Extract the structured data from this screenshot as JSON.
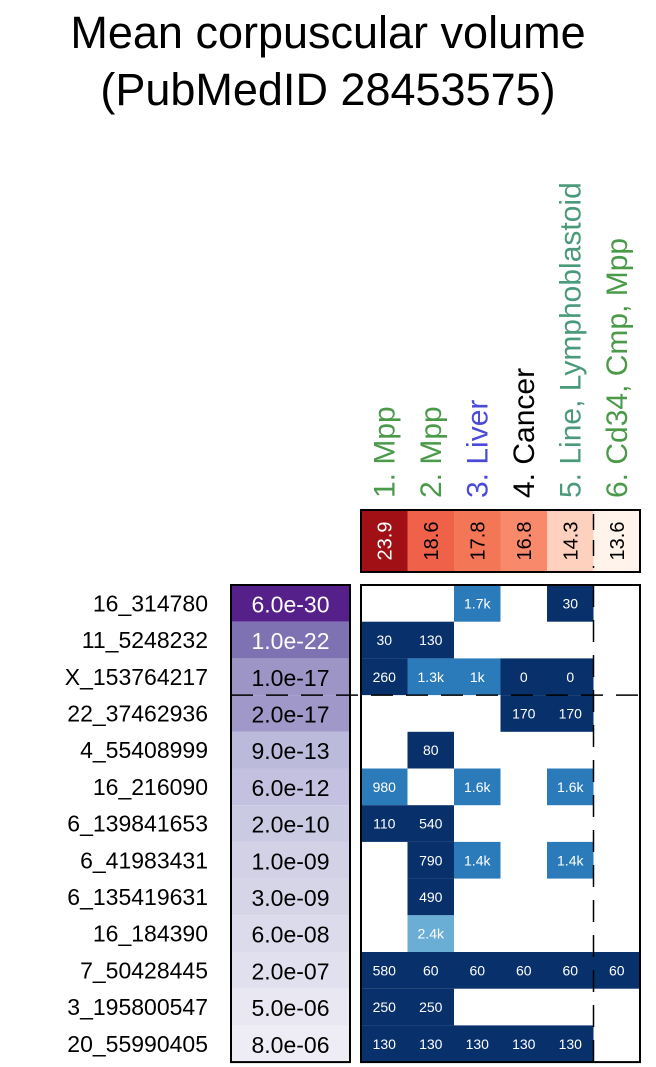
{
  "chart_data": {
    "type": "heatmap",
    "title_lines": [
      "Mean corpuscular volume",
      "(PubMedID 28453575)"
    ],
    "tissues": [
      {
        "label": "1. Mpp",
        "color": "#4a9a4a",
        "score": "23.9",
        "fill": "#a01014",
        "text_color": "#ffffff"
      },
      {
        "label": "2. Mpp",
        "color": "#4a9a4a",
        "score": "18.6",
        "fill": "#ef6148",
        "text_color": "#000000"
      },
      {
        "label": "3. Liver",
        "color": "#4b4bd9",
        "score": "17.8",
        "fill": "#f37656",
        "text_color": "#000000"
      },
      {
        "label": "4. Cancer",
        "color": "#000000",
        "score": "16.8",
        "fill": "#f8896b",
        "text_color": "#000000"
      },
      {
        "label": "5. Line, Lymphoblastoid",
        "color": "#4a9a7a",
        "score": "14.3",
        "fill": "#fdd1bd",
        "text_color": "#000000"
      },
      {
        "label": "6. Cd34, Cmp, Mpp",
        "color": "#4a9a4a",
        "score": "13.6",
        "fill": "#fff3ec",
        "text_color": "#000000"
      }
    ],
    "loci": [
      {
        "name": "16_314780",
        "pvalue": "6.0e-30",
        "pcolor": "#55208a",
        "ptext": "#ffffff",
        "cells": [
          null,
          null,
          "1.7k",
          null,
          "30",
          null
        ]
      },
      {
        "name": "11_5248232",
        "pvalue": "1.0e-22",
        "pcolor": "#7f72b3",
        "ptext": "#ffffff",
        "cells": [
          "30",
          "130",
          null,
          null,
          null,
          null
        ]
      },
      {
        "name": "X_153764217",
        "pvalue": "1.0e-17",
        "pcolor": "#9c95c6",
        "ptext": "#000000",
        "cells": [
          "260",
          "1.3k",
          "1k",
          "0",
          "0",
          null
        ]
      },
      {
        "name": "22_37462936",
        "pvalue": "2.0e-17",
        "pcolor": "#9f98c8",
        "ptext": "#000000",
        "cells": [
          null,
          null,
          null,
          "170",
          "170",
          null
        ]
      },
      {
        "name": "4_55408999",
        "pvalue": "9.0e-13",
        "pcolor": "#bcbadb",
        "ptext": "#000000",
        "cells": [
          null,
          "80",
          null,
          null,
          null,
          null
        ]
      },
      {
        "name": "16_216090",
        "pvalue": "6.0e-12",
        "pcolor": "#c3c1df",
        "ptext": "#000000",
        "cells": [
          "980",
          null,
          "1.6k",
          null,
          "1.6k",
          null
        ]
      },
      {
        "name": "6_139841653",
        "pvalue": "2.0e-10",
        "pcolor": "#cbcae3",
        "ptext": "#000000",
        "cells": [
          "110",
          "540",
          null,
          null,
          null,
          null
        ]
      },
      {
        "name": "6_41983431",
        "pvalue": "1.0e-09",
        "pcolor": "#d2d1e6",
        "ptext": "#000000",
        "cells": [
          null,
          "790",
          "1.4k",
          null,
          "1.4k",
          null
        ]
      },
      {
        "name": "6_135419631",
        "pvalue": "3.0e-09",
        "pcolor": "#d6d5e8",
        "ptext": "#000000",
        "cells": [
          null,
          "490",
          null,
          null,
          null,
          null
        ]
      },
      {
        "name": "16_184390",
        "pvalue": "6.0e-08",
        "pcolor": "#dcdbeb",
        "ptext": "#000000",
        "cells": [
          null,
          "2.4k",
          null,
          null,
          null,
          null
        ]
      },
      {
        "name": "7_50428445",
        "pvalue": "2.0e-07",
        "pcolor": "#e1e0ee",
        "ptext": "#000000",
        "cells": [
          "580",
          "60",
          "60",
          "60",
          "60",
          "60"
        ]
      },
      {
        "name": "3_195800547",
        "pvalue": "5.0e-06",
        "pcolor": "#e8e7f2",
        "ptext": "#000000",
        "cells": [
          "250",
          "250",
          null,
          null,
          null,
          null
        ]
      },
      {
        "name": "20_55990405",
        "pvalue": "8.0e-06",
        "pcolor": "#eeedf5",
        "ptext": "#000000",
        "cells": [
          "130",
          "130",
          "130",
          "130",
          "130",
          null
        ]
      }
    ],
    "cell_colors": {
      "dark": "#08306b",
      "medium": "#2b7bba",
      "light": "#6aaed6",
      "cell_text": "#ffffff"
    },
    "cell_shade": {
      "16_314780": [
        "",
        "",
        "medium",
        "",
        "dark",
        ""
      ],
      "16_184390": [
        "",
        "light",
        "",
        "",
        "",
        ""
      ],
      "X_153764217": [
        "dark",
        "medium",
        "medium",
        "dark",
        "dark",
        ""
      ],
      "16_216090": [
        "medium",
        "",
        "medium",
        "",
        "medium",
        ""
      ],
      "6_41983431": [
        "",
        "dark",
        "medium",
        "",
        "medium",
        ""
      ]
    }
  }
}
